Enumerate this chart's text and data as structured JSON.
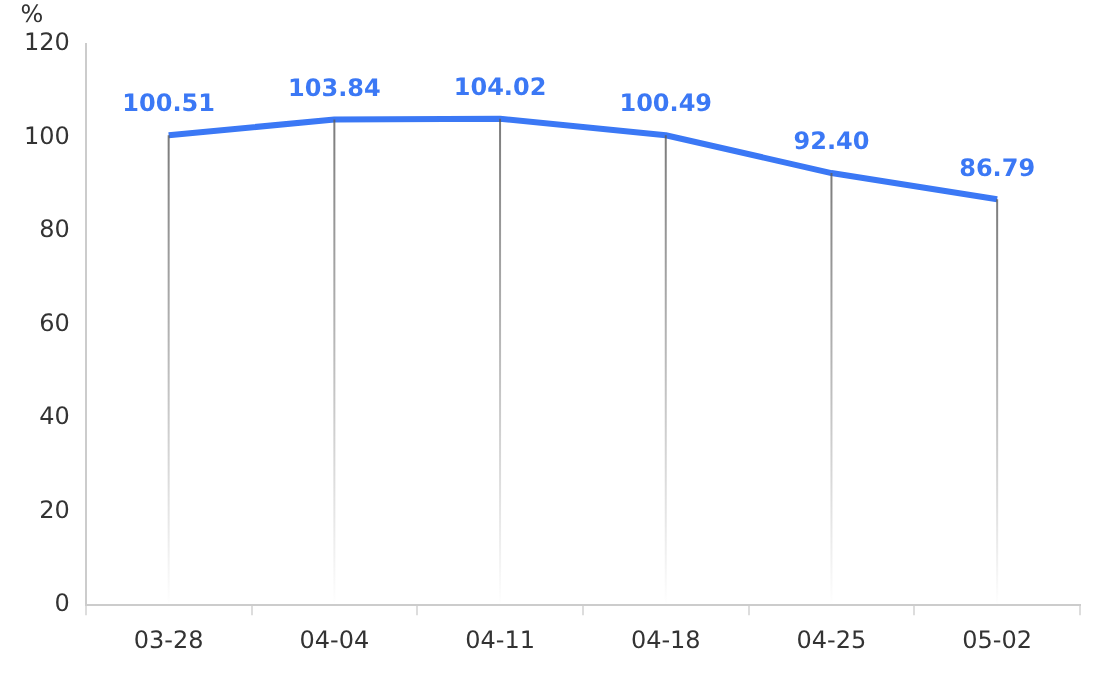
{
  "chart_data": {
    "type": "line",
    "ylabel": "%",
    "categories": [
      "03-28",
      "04-04",
      "04-11",
      "04-18",
      "04-25",
      "05-02"
    ],
    "series": [
      {
        "color": "#3b78f5",
        "values": [
          100.51,
          103.84,
          104.02,
          100.49,
          92.4,
          86.79
        ]
      }
    ],
    "value_labels": [
      "100.51",
      "103.84",
      "104.02",
      "100.49",
      "92.40",
      "86.79"
    ],
    "ylim": [
      0,
      120
    ],
    "yticks": [
      0,
      20,
      40,
      60,
      80,
      100,
      120
    ],
    "grid": "x",
    "legend": false,
    "marker": "none",
    "line_style": "solid"
  }
}
